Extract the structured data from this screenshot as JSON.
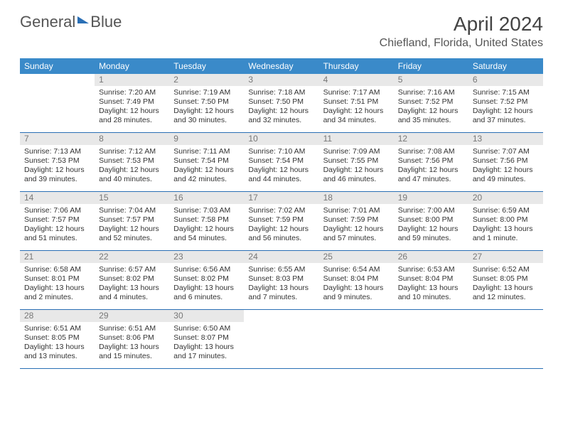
{
  "logo": {
    "text1": "General",
    "text2": "Blue"
  },
  "title": "April 2024",
  "location": "Chiefland, Florida, United States",
  "colors": {
    "header_bg": "#3a8ac9",
    "border": "#2a6fb5",
    "daynum_bg": "#e8e8e8",
    "text": "#333333"
  },
  "day_labels": [
    "Sunday",
    "Monday",
    "Tuesday",
    "Wednesday",
    "Thursday",
    "Friday",
    "Saturday"
  ],
  "start_offset": 1,
  "days": [
    {
      "n": 1,
      "sr": "7:20 AM",
      "ss": "7:49 PM",
      "dl": "12 hours and 28 minutes."
    },
    {
      "n": 2,
      "sr": "7:19 AM",
      "ss": "7:50 PM",
      "dl": "12 hours and 30 minutes."
    },
    {
      "n": 3,
      "sr": "7:18 AM",
      "ss": "7:50 PM",
      "dl": "12 hours and 32 minutes."
    },
    {
      "n": 4,
      "sr": "7:17 AM",
      "ss": "7:51 PM",
      "dl": "12 hours and 34 minutes."
    },
    {
      "n": 5,
      "sr": "7:16 AM",
      "ss": "7:52 PM",
      "dl": "12 hours and 35 minutes."
    },
    {
      "n": 6,
      "sr": "7:15 AM",
      "ss": "7:52 PM",
      "dl": "12 hours and 37 minutes."
    },
    {
      "n": 7,
      "sr": "7:13 AM",
      "ss": "7:53 PM",
      "dl": "12 hours and 39 minutes."
    },
    {
      "n": 8,
      "sr": "7:12 AM",
      "ss": "7:53 PM",
      "dl": "12 hours and 40 minutes."
    },
    {
      "n": 9,
      "sr": "7:11 AM",
      "ss": "7:54 PM",
      "dl": "12 hours and 42 minutes."
    },
    {
      "n": 10,
      "sr": "7:10 AM",
      "ss": "7:54 PM",
      "dl": "12 hours and 44 minutes."
    },
    {
      "n": 11,
      "sr": "7:09 AM",
      "ss": "7:55 PM",
      "dl": "12 hours and 46 minutes."
    },
    {
      "n": 12,
      "sr": "7:08 AM",
      "ss": "7:56 PM",
      "dl": "12 hours and 47 minutes."
    },
    {
      "n": 13,
      "sr": "7:07 AM",
      "ss": "7:56 PM",
      "dl": "12 hours and 49 minutes."
    },
    {
      "n": 14,
      "sr": "7:06 AM",
      "ss": "7:57 PM",
      "dl": "12 hours and 51 minutes."
    },
    {
      "n": 15,
      "sr": "7:04 AM",
      "ss": "7:57 PM",
      "dl": "12 hours and 52 minutes."
    },
    {
      "n": 16,
      "sr": "7:03 AM",
      "ss": "7:58 PM",
      "dl": "12 hours and 54 minutes."
    },
    {
      "n": 17,
      "sr": "7:02 AM",
      "ss": "7:59 PM",
      "dl": "12 hours and 56 minutes."
    },
    {
      "n": 18,
      "sr": "7:01 AM",
      "ss": "7:59 PM",
      "dl": "12 hours and 57 minutes."
    },
    {
      "n": 19,
      "sr": "7:00 AM",
      "ss": "8:00 PM",
      "dl": "12 hours and 59 minutes."
    },
    {
      "n": 20,
      "sr": "6:59 AM",
      "ss": "8:00 PM",
      "dl": "13 hours and 1 minute."
    },
    {
      "n": 21,
      "sr": "6:58 AM",
      "ss": "8:01 PM",
      "dl": "13 hours and 2 minutes."
    },
    {
      "n": 22,
      "sr": "6:57 AM",
      "ss": "8:02 PM",
      "dl": "13 hours and 4 minutes."
    },
    {
      "n": 23,
      "sr": "6:56 AM",
      "ss": "8:02 PM",
      "dl": "13 hours and 6 minutes."
    },
    {
      "n": 24,
      "sr": "6:55 AM",
      "ss": "8:03 PM",
      "dl": "13 hours and 7 minutes."
    },
    {
      "n": 25,
      "sr": "6:54 AM",
      "ss": "8:04 PM",
      "dl": "13 hours and 9 minutes."
    },
    {
      "n": 26,
      "sr": "6:53 AM",
      "ss": "8:04 PM",
      "dl": "13 hours and 10 minutes."
    },
    {
      "n": 27,
      "sr": "6:52 AM",
      "ss": "8:05 PM",
      "dl": "13 hours and 12 minutes."
    },
    {
      "n": 28,
      "sr": "6:51 AM",
      "ss": "8:05 PM",
      "dl": "13 hours and 13 minutes."
    },
    {
      "n": 29,
      "sr": "6:51 AM",
      "ss": "8:06 PM",
      "dl": "13 hours and 15 minutes."
    },
    {
      "n": 30,
      "sr": "6:50 AM",
      "ss": "8:07 PM",
      "dl": "13 hours and 17 minutes."
    }
  ],
  "labels": {
    "sunrise": "Sunrise:",
    "sunset": "Sunset:",
    "daylight": "Daylight:"
  }
}
